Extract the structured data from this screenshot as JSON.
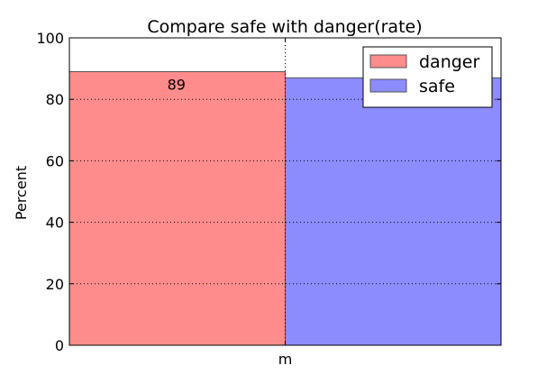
{
  "chart_data": {
    "type": "bar",
    "title": "Compare safe with danger(rate)",
    "ylabel": "Percent",
    "xlabel": "",
    "categories": [
      "m"
    ],
    "ylim": [
      0,
      100
    ],
    "yticks": [
      0,
      20,
      40,
      60,
      80,
      100
    ],
    "grid": true,
    "legend_position": "top-right",
    "series": [
      {
        "name": "danger",
        "values": [
          89
        ],
        "color": "#ff8c8c",
        "data_label": "89"
      },
      {
        "name": "safe",
        "values": [
          87
        ],
        "color": "#8c8cff"
      }
    ]
  }
}
